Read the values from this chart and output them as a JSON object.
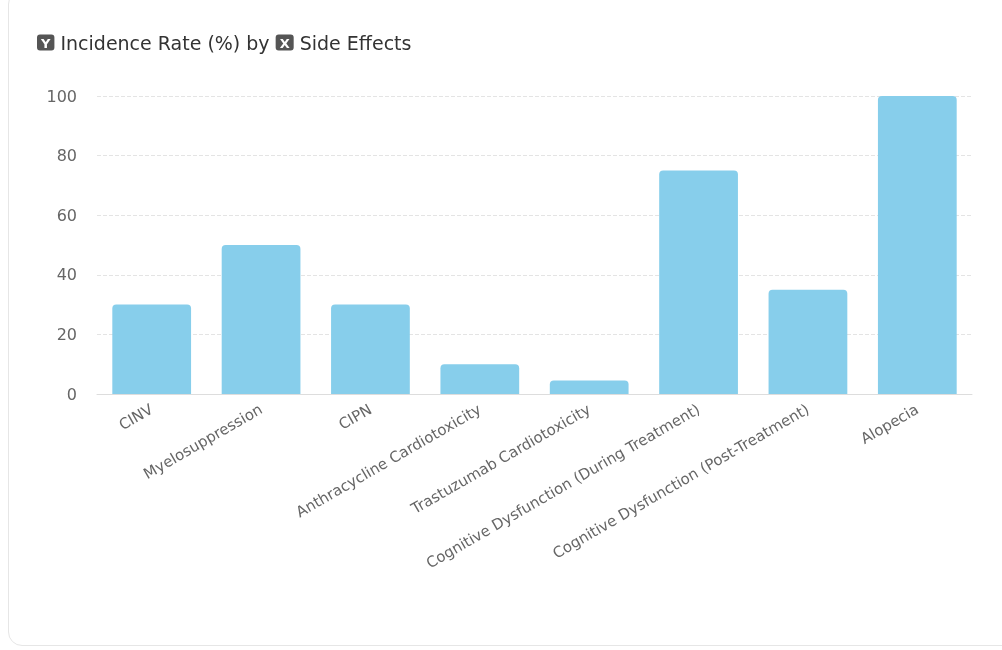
{
  "chart_data": {
    "type": "bar",
    "title": "by",
    "ylabel": "Incidence Rate (%)",
    "xlabel": "Side Effects",
    "annotations": [
      "Y",
      "X"
    ],
    "categories": [
      "CINV",
      "Myelosuppression",
      "CIPN",
      "Anthracycline Cardiotoxicity",
      "Trastuzumab Cardiotoxicity",
      "Cognitive Dysfunction (During Treatment)",
      "Cognitive Dysfunction (Post-Treatment)",
      "Alopecia"
    ],
    "values": [
      30,
      50,
      30,
      10,
      4.5,
      75,
      35,
      100
    ],
    "color": "#87ceeb",
    "ylim": [
      0,
      100
    ],
    "yticks": [
      0,
      20,
      40,
      60,
      80,
      100
    ],
    "grid": "y"
  }
}
